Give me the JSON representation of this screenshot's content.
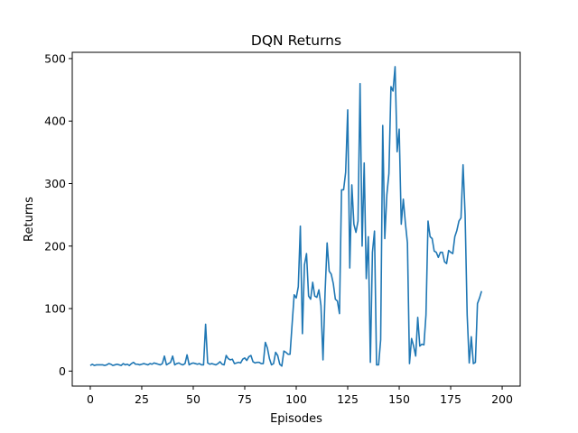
{
  "chart_data": {
    "type": "line",
    "title": "DQN Returns",
    "xlabel": "Episodes",
    "ylabel": "Returns",
    "xlim": [
      -8.75,
      208.75
    ],
    "ylim": [
      -24.0,
      510.0
    ],
    "grid": false,
    "xticks": [
      0,
      25,
      50,
      75,
      100,
      125,
      150,
      175,
      200
    ],
    "yticks": [
      0,
      100,
      200,
      300,
      400,
      500
    ],
    "colors": {
      "line": "#1f77b4"
    },
    "series": [
      {
        "values": [
          9,
          11,
          9,
          10,
          10,
          10,
          10,
          9,
          10,
          12,
          11,
          9,
          10,
          11,
          10,
          9,
          12,
          10,
          11,
          9,
          12,
          14,
          11,
          11,
          10,
          11,
          12,
          11,
          10,
          12,
          11,
          13,
          12,
          11,
          10,
          12,
          24,
          10,
          12,
          14,
          24,
          10,
          12,
          13,
          11,
          10,
          12,
          26,
          10,
          12,
          13,
          12,
          11,
          12,
          10,
          10,
          75,
          13,
          11,
          12,
          11,
          10,
          12,
          15,
          11,
          10,
          25,
          20,
          18,
          19,
          12,
          13,
          14,
          13,
          19,
          21,
          17,
          23,
          25,
          15,
          13,
          14,
          14,
          12,
          12,
          46,
          37,
          20,
          10,
          12,
          30,
          25,
          11,
          8,
          32,
          30,
          27,
          27,
          75,
          122,
          117,
          135,
          232,
          60,
          170,
          188,
          120,
          115,
          142,
          120,
          118,
          130,
          105,
          18,
          125,
          205,
          160,
          155,
          140,
          115,
          112,
          92,
          290,
          290,
          318,
          418,
          165,
          298,
          235,
          222,
          240,
          460,
          200,
          333,
          148,
          215,
          14,
          190,
          224,
          10,
          10,
          50,
          393,
          212,
          282,
          316,
          455,
          448,
          487,
          351,
          387,
          235,
          275,
          237,
          205,
          12,
          52,
          40,
          24,
          86,
          40,
          43,
          42,
          90,
          240,
          215,
          212,
          192,
          190,
          182,
          190,
          190,
          175,
          172,
          193,
          190,
          188,
          215,
          225,
          240,
          245,
          330,
          250,
          90,
          13,
          55,
          12,
          14,
          108,
          117,
          128
        ]
      }
    ]
  }
}
